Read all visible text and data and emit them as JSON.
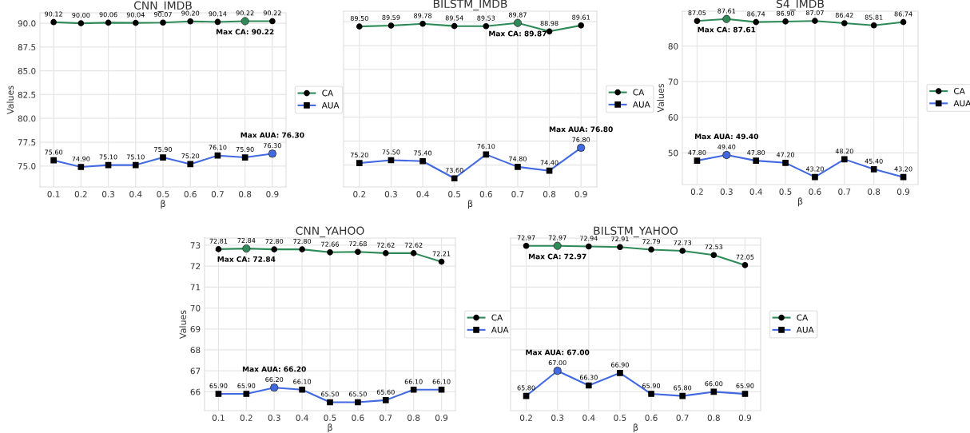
{
  "chart_data": [
    {
      "type": "line",
      "title": "CNN_IMDB",
      "xlabel": "β",
      "ylabel": "Values",
      "x": [
        0.1,
        0.2,
        0.3,
        0.4,
        0.5,
        0.6,
        0.7,
        0.8,
        0.9
      ],
      "xlim": [
        0.05,
        0.95
      ],
      "xticks": [
        0.1,
        0.2,
        0.3,
        0.4,
        0.5,
        0.6,
        0.7,
        0.8,
        0.9
      ],
      "ylim": [
        72.8,
        91.1
      ],
      "yticks": [
        {
          "value": 75,
          "label": "75.0"
        },
        77.5,
        {
          "value": 80,
          "label": "80.0"
        },
        82.5,
        {
          "value": 85,
          "label": "85.0"
        },
        87.5,
        {
          "value": 90,
          "label": "90.0"
        }
      ],
      "grid": true,
      "legend": "right",
      "series": [
        {
          "name": "CA",
          "color": "#2e8b57",
          "marker": "circle",
          "values": [
            90.12,
            90.0,
            90.06,
            90.04,
            90.07,
            90.2,
            90.14,
            90.22,
            90.22
          ],
          "value_labels": [
            "90.12",
            "90.00",
            "90.06",
            "90.04",
            "90.07",
            "90.20",
            "90.14",
            "90.22",
            "90.22"
          ]
        },
        {
          "name": "AUA",
          "color": "#4169e1",
          "marker": "square",
          "values": [
            75.6,
            74.9,
            75.1,
            75.1,
            75.9,
            75.2,
            76.1,
            75.9,
            76.3
          ],
          "value_labels": [
            "75.60",
            "74.90",
            "75.10",
            "75.10",
            "75.90",
            "75.20",
            "76.10",
            "75.90",
            "76.30"
          ]
        }
      ],
      "annotations": [
        {
          "text": "Max CA: 90.22",
          "x": 0.8,
          "y": 90.22
        },
        {
          "text": "Max AUA: 76.30",
          "x": 0.9,
          "y": 76.3
        }
      ]
    },
    {
      "type": "line",
      "title": "BILSTM_IMDB",
      "xlabel": "β",
      "x": [
        0.2,
        0.3,
        0.4,
        0.5,
        0.6,
        0.7,
        0.8,
        0.9
      ],
      "xlim": [
        0.15,
        0.95
      ],
      "xticks": [
        0.2,
        0.3,
        0.4,
        0.5,
        0.6,
        0.7,
        0.8,
        0.9
      ],
      "ylim": [
        72.7,
        91.1
      ],
      "yticks": [
        {
          "value": 75,
          "label": null
        },
        {
          "value": 77.5,
          "label": null
        },
        {
          "value": 80,
          "label": null
        },
        {
          "value": 82.5,
          "label": null
        },
        {
          "value": 85,
          "label": null
        },
        {
          "value": 87.5,
          "label": null
        },
        {
          "value": 90,
          "label": null
        }
      ],
      "tick_labels": "x",
      "grid": true,
      "legend": "right",
      "series": [
        {
          "name": "CA",
          "color": "#2e8b57",
          "marker": "circle",
          "values": [
            89.5,
            89.59,
            89.78,
            89.54,
            89.53,
            89.87,
            88.98,
            89.61
          ],
          "value_labels": [
            "89.50",
            "89.59",
            "89.78",
            "89.54",
            "89.53",
            "89.87",
            "88.98",
            "89.61"
          ]
        },
        {
          "name": "AUA",
          "color": "#4169e1",
          "marker": "square",
          "values": [
            75.2,
            75.5,
            75.4,
            73.6,
            76.1,
            74.8,
            74.4,
            76.8
          ],
          "value_labels": [
            "75.20",
            "75.50",
            "75.40",
            "73.60",
            "76.10",
            "74.80",
            "74.40",
            "76.80"
          ]
        }
      ],
      "annotations": [
        {
          "text": "Max CA: 89.87",
          "x": 0.7,
          "y": 89.87
        },
        {
          "text": "Max AUA: 76.80",
          "x": 0.9,
          "y": 76.8
        }
      ]
    },
    {
      "type": "line",
      "title": "S4_IMDB",
      "xlabel": "β",
      "ylabel": "Values",
      "x": [
        0.2,
        0.3,
        0.4,
        0.5,
        0.6,
        0.7,
        0.8,
        0.9
      ],
      "xlim": [
        0.15,
        0.95
      ],
      "xticks": [
        0.2,
        0.3,
        0.4,
        0.5,
        0.6,
        0.7,
        0.8,
        0.9
      ],
      "ylim": [
        41.1,
        89.8
      ],
      "yticks": [
        50,
        60,
        70,
        80
      ],
      "grid": true,
      "legend": "right",
      "series": [
        {
          "name": "CA",
          "color": "#2e8b57",
          "marker": "circle",
          "values": [
            87.05,
            87.61,
            86.74,
            86.9,
            87.07,
            86.42,
            85.81,
            86.74
          ],
          "value_labels": [
            "87.05",
            "87.61",
            "86.74",
            "86.90",
            "87.07",
            "86.42",
            "85.81",
            "86.74"
          ]
        },
        {
          "name": "AUA",
          "color": "#4169e1",
          "marker": "square",
          "values": [
            47.8,
            49.4,
            47.8,
            47.2,
            43.2,
            48.2,
            45.4,
            43.2
          ],
          "value_labels": [
            "47.80",
            "49.40",
            "47.80",
            "47.20",
            "43.20",
            "48.20",
            "45.40",
            "43.20"
          ]
        }
      ],
      "annotations": [
        {
          "text": "Max CA: 87.61",
          "x": 0.3,
          "y": 87.61
        },
        {
          "text": "Max AUA: 49.40",
          "x": 0.3,
          "y": 49.4
        }
      ]
    },
    {
      "type": "line",
      "title": "CNN_YAHOO",
      "xlabel": "β",
      "ylabel": "Values",
      "x": [
        0.1,
        0.2,
        0.3,
        0.4,
        0.5,
        0.6,
        0.7,
        0.8,
        0.9
      ],
      "xlim": [
        0.05,
        0.95
      ],
      "xticks": [
        0.1,
        0.2,
        0.3,
        0.4,
        0.5,
        0.6,
        0.7,
        0.8,
        0.9
      ],
      "ylim": [
        65.1,
        73.34
      ],
      "yticks": [
        66,
        67,
        68,
        69,
        70,
        71,
        72,
        73
      ],
      "grid": true,
      "legend": "right",
      "series": [
        {
          "name": "CA",
          "color": "#2e8b57",
          "marker": "circle",
          "values": [
            72.81,
            72.84,
            72.8,
            72.8,
            72.66,
            72.68,
            72.62,
            72.62,
            72.21
          ],
          "value_labels": [
            "72.81",
            "72.84",
            "72.80",
            "72.80",
            "72.66",
            "72.68",
            "72.62",
            "72.62",
            "72.21"
          ]
        },
        {
          "name": "AUA",
          "color": "#4169e1",
          "marker": "square",
          "values": [
            65.9,
            65.9,
            66.2,
            66.1,
            65.5,
            65.5,
            65.6,
            66.1,
            66.1
          ],
          "value_labels": [
            "65.90",
            "65.90",
            "66.20",
            "66.10",
            "65.50",
            "65.50",
            "65.60",
            "66.10",
            "66.10"
          ]
        }
      ],
      "annotations": [
        {
          "text": "Max CA: 72.84",
          "x": 0.2,
          "y": 72.84
        },
        {
          "text": "Max AUA: 66.20",
          "x": 0.3,
          "y": 66.2
        }
      ]
    },
    {
      "type": "line",
      "title": "BILSTM_YAHOO",
      "xlabel": "β",
      "x": [
        0.2,
        0.3,
        0.4,
        0.5,
        0.6,
        0.7,
        0.8,
        0.9
      ],
      "xlim": [
        0.15,
        0.95
      ],
      "xticks": [
        0.2,
        0.3,
        0.4,
        0.5,
        0.6,
        0.7,
        0.8,
        0.9
      ],
      "ylim": [
        65.1,
        73.34
      ],
      "yticks": [
        {
          "value": 66,
          "label": null
        },
        {
          "value": 67,
          "label": null
        },
        {
          "value": 68,
          "label": null
        },
        {
          "value": 69,
          "label": null
        },
        {
          "value": 70,
          "label": null
        },
        {
          "value": 71,
          "label": null
        },
        {
          "value": 72,
          "label": null
        },
        {
          "value": 73,
          "label": null
        }
      ],
      "tick_labels": "x",
      "grid": true,
      "legend": "right",
      "series": [
        {
          "name": "CA",
          "color": "#2e8b57",
          "marker": "circle",
          "values": [
            72.97,
            72.97,
            72.94,
            72.91,
            72.79,
            72.73,
            72.53,
            72.05
          ],
          "value_labels": [
            "72.97",
            "72.97",
            "72.94",
            "72.91",
            "72.79",
            "72.73",
            "72.53",
            "72.05"
          ]
        },
        {
          "name": "AUA",
          "color": "#4169e1",
          "marker": "square",
          "values": [
            65.8,
            67.0,
            66.3,
            66.9,
            65.9,
            65.8,
            66.0,
            65.9
          ],
          "value_labels": [
            "65.80",
            "67.00",
            "66.30",
            "66.90",
            "65.90",
            "65.80",
            "66.00",
            "65.90"
          ]
        }
      ],
      "annotations": [
        {
          "text": "Max CA: 72.97",
          "x": 0.3,
          "y": 72.97
        },
        {
          "text": "Max AUA: 67.00",
          "x": 0.3,
          "y": 67.0
        }
      ]
    }
  ]
}
